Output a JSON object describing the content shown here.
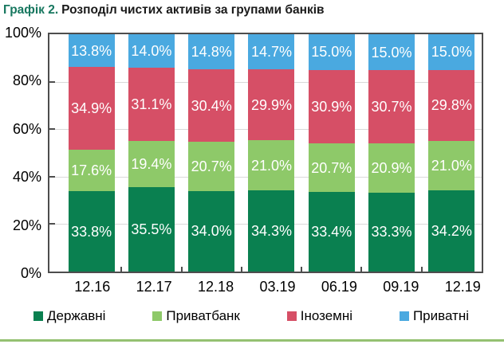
{
  "title": {
    "prefix": "Графік 2.",
    "text": "Розподіл чистих активів за групами банків"
  },
  "colors": {
    "title_accent": "#17775f",
    "axis_border": "#4d4d4d",
    "gridline": "#d9d9d9",
    "data_label": "#ffffff",
    "divider_rule": "#94c171"
  },
  "chart_data": {
    "type": "bar",
    "stacked": true,
    "title": "Графік 2. Розподіл чистих активів за групами банків",
    "xlabel": "",
    "ylabel": "",
    "ylim": [
      0,
      100
    ],
    "grid": true,
    "legend_position": "bottom",
    "value_suffix": "%",
    "categories": [
      "12.16",
      "12.17",
      "12.18",
      "03.19",
      "06.19",
      "09.19",
      "12.19"
    ],
    "series": [
      {
        "name": "Державні",
        "color": "#0a8050",
        "values": [
          33.8,
          35.5,
          34.0,
          34.3,
          33.4,
          33.3,
          34.2
        ],
        "labels": [
          "33.8%",
          "35.5%",
          "34.0%",
          "34.3%",
          "33.4%",
          "33.3%",
          "34.2%"
        ]
      },
      {
        "name": "Приватбанк",
        "color": "#8ec969",
        "values": [
          17.6,
          19.4,
          20.7,
          21.0,
          20.7,
          20.9,
          21.0
        ],
        "labels": [
          "17.6%",
          "19.4%",
          "20.7%",
          "21.0%",
          "20.7%",
          "20.9%",
          "21.0%"
        ]
      },
      {
        "name": "Іноземні",
        "color": "#d64f66",
        "values": [
          34.9,
          31.1,
          30.4,
          29.9,
          30.9,
          30.7,
          29.8
        ],
        "labels": [
          "34.9%",
          "31.1%",
          "30.4%",
          "29.9%",
          "30.9%",
          "30.7%",
          "29.8%"
        ]
      },
      {
        "name": "Приватні",
        "color": "#4aa9e0",
        "values": [
          13.8,
          14.0,
          14.8,
          14.7,
          15.0,
          15.0,
          15.0
        ],
        "labels": [
          "13.8%",
          "14.0%",
          "14.8%",
          "14.7%",
          "15.0%",
          "15.0%",
          "15.0%"
        ]
      }
    ],
    "y_ticks": [
      {
        "label": "100%",
        "value": 100
      },
      {
        "label": "80%",
        "value": 80
      },
      {
        "label": "60%",
        "value": 60
      },
      {
        "label": "40%",
        "value": 40
      },
      {
        "label": "20%",
        "value": 20
      },
      {
        "label": "0%",
        "value": 0
      }
    ]
  }
}
